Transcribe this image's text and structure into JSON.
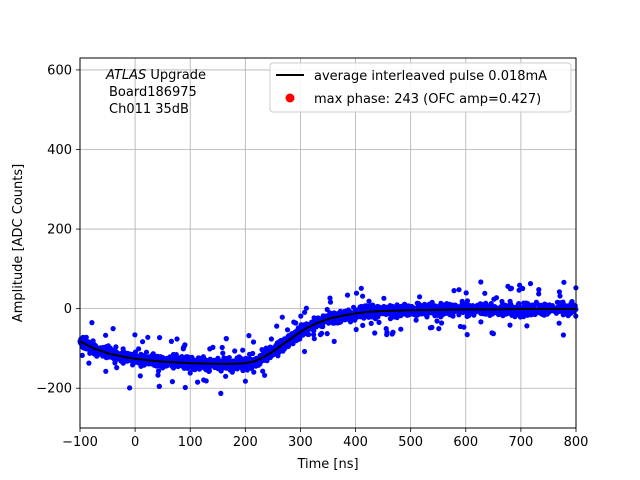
{
  "chart_data": {
    "type": "scatter",
    "title": "",
    "xlabel": "Time [ns]",
    "ylabel": "Amplitude [ADC Counts]",
    "xlim": [
      -100,
      800
    ],
    "ylim": [
      -300,
      630
    ],
    "x_ticks": [
      -100,
      0,
      100,
      200,
      300,
      400,
      500,
      600,
      700,
      800
    ],
    "y_ticks": [
      -200,
      0,
      200,
      400,
      600
    ],
    "grid": true,
    "annotation": {
      "line1_italic": "ATLAS",
      "line1_rest": " Upgrade",
      "line2": "Board186975",
      "line3": "Ch011 35dB"
    },
    "legend": {
      "position": "top-right",
      "entries": [
        {
          "label": "average interleaved pulse 0.018mA",
          "marker": "line",
          "color": "#000000"
        },
        {
          "label": "max phase: 243 (OFC amp=0.427)",
          "marker": "dot",
          "color": "#ff0000"
        }
      ]
    },
    "series": [
      {
        "name": "average interleaved pulse 0.018mA",
        "kind": "line",
        "color": "#000000",
        "x": [
          -100,
          -75,
          -50,
          -25,
          0,
          25,
          50,
          75,
          100,
          125,
          150,
          175,
          200,
          215,
          230,
          250,
          270,
          290,
          310,
          330,
          350,
          375,
          400,
          425,
          450,
          500,
          550,
          600,
          650,
          700,
          750,
          800
        ],
        "y": [
          -82,
          -100,
          -112,
          -120,
          -126,
          -130,
          -133,
          -135,
          -137,
          -138,
          -139,
          -139,
          -137,
          -133,
          -124,
          -108,
          -88,
          -68,
          -50,
          -36,
          -26,
          -18,
          -12,
          -8,
          -6,
          -4,
          -3,
          -2,
          -2,
          -1,
          -1,
          -1
        ]
      },
      {
        "name": "samples",
        "kind": "scatter",
        "color": "#0000ff",
        "note": "dense noisy samples spread of roughly +/-25 ADC counts around the average pulse"
      }
    ]
  }
}
